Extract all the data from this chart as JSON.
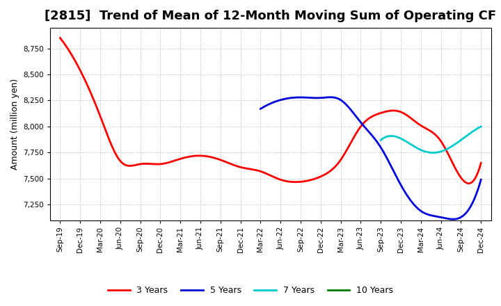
{
  "title": "[2815]  Trend of Mean of 12-Month Moving Sum of Operating CF",
  "ylabel": "Amount (million yen)",
  "background_color": "#ffffff",
  "plot_background_color": "#ffffff",
  "grid_color": "#aaaaaa",
  "ylim": [
    7100,
    8950
  ],
  "yticks": [
    7250,
    7500,
    7750,
    8000,
    8250,
    8500,
    8750
  ],
  "x_labels": [
    "Sep-19",
    "Dec-19",
    "Mar-20",
    "Jun-20",
    "Sep-20",
    "Dec-20",
    "Mar-21",
    "Jun-21",
    "Sep-21",
    "Dec-21",
    "Mar-22",
    "Jun-22",
    "Sep-22",
    "Dec-22",
    "Mar-23",
    "Jun-23",
    "Sep-23",
    "Dec-23",
    "Mar-24",
    "Jun-24",
    "Sep-24",
    "Dec-24"
  ],
  "line_3y_x": [
    0,
    1,
    2,
    3,
    4,
    5,
    6,
    7,
    8,
    9,
    10,
    11,
    12,
    13,
    14,
    15,
    16,
    17,
    18,
    19,
    20,
    21
  ],
  "line_3y_y": [
    8850,
    8540,
    8100,
    7670,
    7640,
    7640,
    7690,
    7720,
    7680,
    7610,
    7570,
    7490,
    7470,
    7520,
    7680,
    8000,
    8130,
    8140,
    8010,
    7860,
    7510,
    7650
  ],
  "line_5y_x": [
    10,
    11,
    12,
    13,
    14,
    15,
    16,
    17,
    18,
    19,
    20,
    21
  ],
  "line_5y_y": [
    8170,
    8255,
    8280,
    8275,
    8255,
    8040,
    7800,
    7440,
    7190,
    7130,
    7130,
    7490
  ],
  "line_7y_x": [
    16,
    17,
    18,
    19,
    20,
    21
  ],
  "line_7y_y": [
    7870,
    7885,
    7775,
    7760,
    7870,
    8000
  ],
  "line_10y_x": [],
  "line_10y_y": [],
  "color_3y": "#ff0000",
  "color_5y": "#0000dd",
  "color_7y": "#00cccc",
  "color_10y": "#008000",
  "linewidth": 2.0,
  "title_fontsize": 13,
  "tick_fontsize": 7.5,
  "legend_fontsize": 9,
  "smooth_points": 300
}
